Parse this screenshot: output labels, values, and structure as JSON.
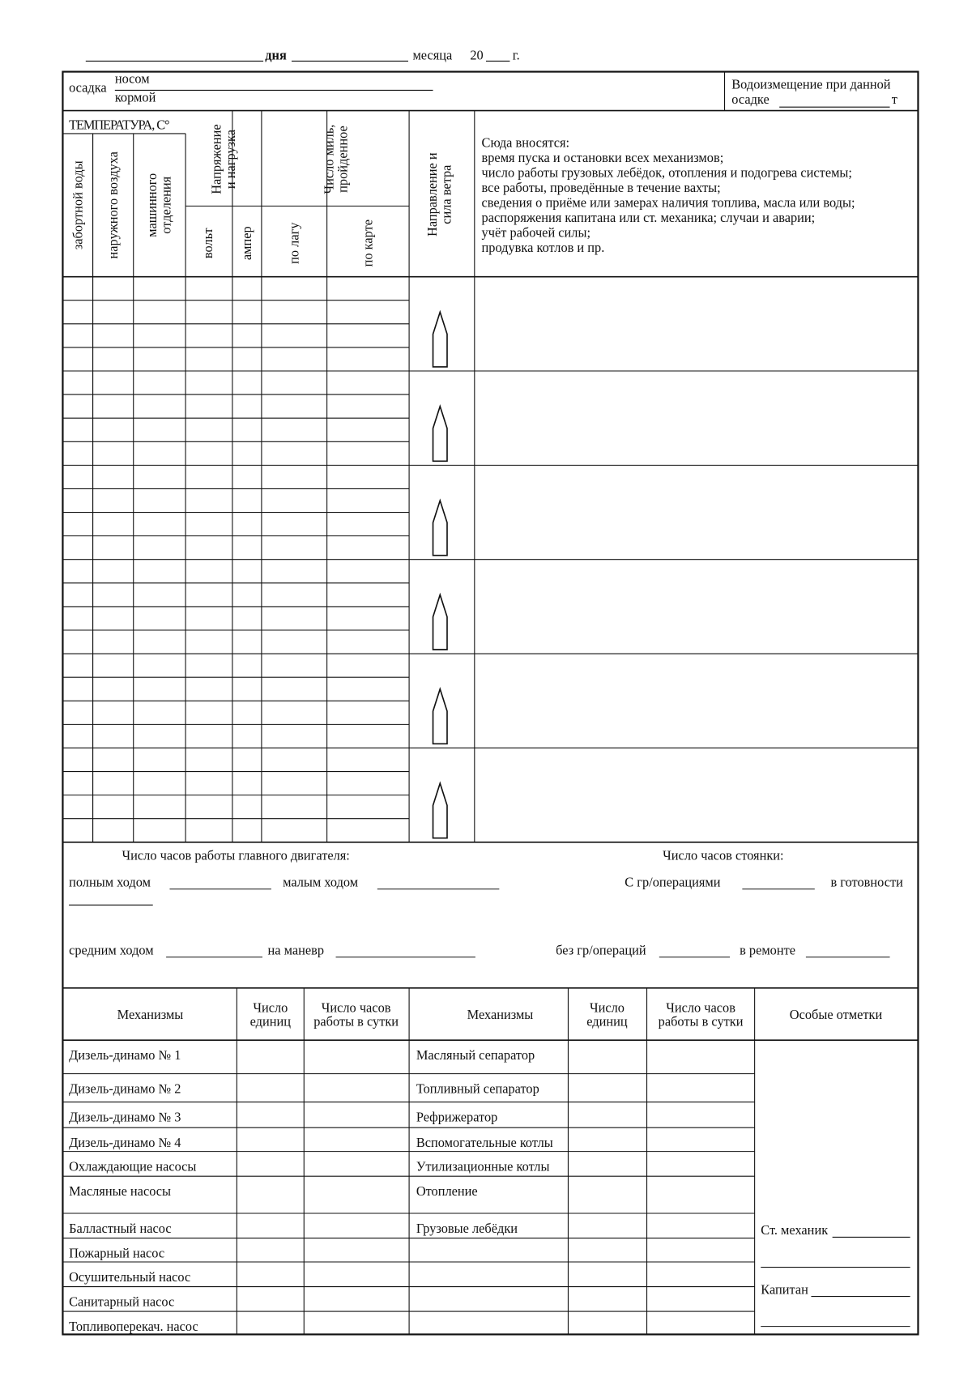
{
  "header": {
    "day": "дня",
    "month": "месяца",
    "year": "20",
    "year_suffix": "г."
  },
  "draft": {
    "label": "осадка",
    "bow": "носом",
    "stern": "кормой",
    "displacement": [
      "Водоизмещение при данной",
      "осадке"
    ],
    "unit": "т"
  },
  "log": {
    "temperature": "ТЕМПЕРАТУРА, С°",
    "temp_columns": [
      [
        "забортной воды"
      ],
      [
        "наружного воздуха"
      ],
      [
        "машинного",
        "отделения"
      ]
    ],
    "voltage": [
      "Напряжение",
      "и нагрузка"
    ],
    "volt": "вольт",
    "amp": "ампер",
    "miles": [
      "Число миль,",
      "пройденное"
    ],
    "by_log": "по лагу",
    "by_map": "по карте",
    "wind": [
      "Направление и",
      "сила ветра"
    ],
    "notes": [
      "Сюда вносятся:",
      "время пуска и остановки всех механизмов;",
      "число работы грузовых лебёдок, отопления и подогрева системы;",
      "все работы, проведённые в течение вахты;",
      "сведения о приёме или замерах наличия топлива, масла или воды;",
      "распоряжения капитана или ст. механика; случаи и аварии;",
      "учёт рабочей силы;",
      "продувка котлов и пр."
    ]
  },
  "hours": {
    "engine_title": "Число часов работы главного двигателя:",
    "parking_title": "Число часов стоянки:",
    "full": "полным ходом",
    "slow": "малым ходом",
    "cargo_ops": "С гр/операциями",
    "ready": "в готовности",
    "medium": "средним ходом",
    "maneuver": "на маневр",
    "no_cargo_ops": "без гр/операций",
    "repair": "в ремонте"
  },
  "mechanisms": {
    "headers": [
      [
        "Механизмы"
      ],
      [
        "Число",
        "единиц"
      ],
      [
        "Число часов",
        "работы в сутки"
      ],
      [
        "Механизмы"
      ],
      [
        "Число",
        "единиц"
      ],
      [
        "Число часов",
        "работы в сутки"
      ],
      [
        "Особые отметки"
      ]
    ],
    "left": [
      "Дизель-динамо № 1",
      "Дизель-динамо № 2",
      "Дизель-динамо № 3",
      "Дизель-динамо № 4",
      "Охлаждающие насосы",
      "Масляные насосы",
      "Балластный насос",
      "Пожарный насос",
      "Осушительный насос",
      "Санитарный насос",
      "Топливоперекач. насос"
    ],
    "right": [
      "Масляный сепаратор",
      "Топливный сепаратор",
      "Рефрижератор",
      "Вспомогательные котлы",
      "Утилизационные котлы",
      "Отопление",
      "Грузовые лебёдки"
    ],
    "chief_engineer": "Ст. механик",
    "captain": "Капитан"
  }
}
